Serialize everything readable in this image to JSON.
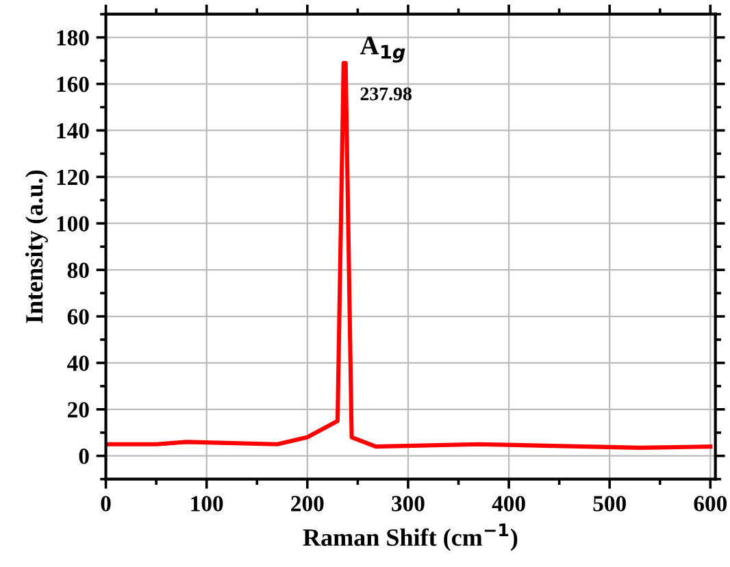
{
  "chart_data": {
    "type": "line",
    "xlabel": "Raman Shift (cm$^{−1}$)",
    "ylabel": "Intensity (a.u.)",
    "x": [
      0,
      50,
      80,
      170,
      200,
      230,
      236,
      238,
      244,
      268,
      370,
      530,
      600
    ],
    "series": [
      {
        "color": "#ff0000",
        "values": [
          5,
          5,
          6,
          5,
          8,
          15,
          169,
          169,
          8,
          4,
          5,
          3.5,
          4
        ]
      }
    ],
    "xlim": [
      0,
      605
    ],
    "ylim": [
      -10,
      190
    ],
    "xticks": [
      0,
      100,
      200,
      300,
      400,
      500,
      600
    ],
    "yticks": [
      0,
      20,
      40,
      60,
      80,
      100,
      120,
      140,
      160,
      180
    ],
    "grid": true,
    "legend": false,
    "marker": "none",
    "line_style": "solid",
    "annotations": [
      {
        "text": "A$_{1g}$",
        "x": 237,
        "y": 169
      },
      {
        "text": "237.98",
        "x": 237,
        "y": 155
      }
    ]
  }
}
